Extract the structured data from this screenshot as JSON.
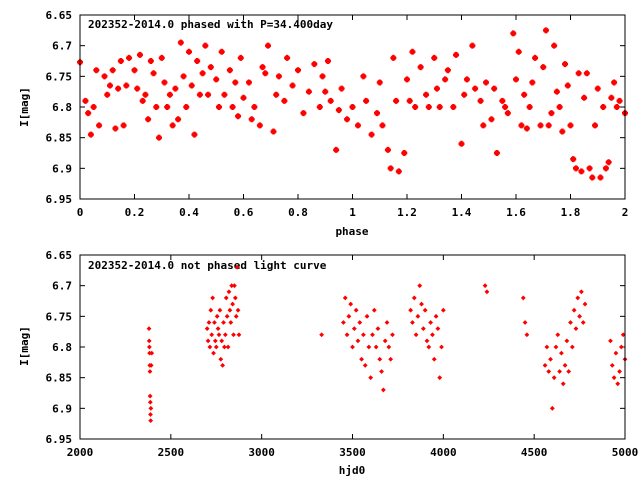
{
  "chart_data": [
    {
      "type": "scatter",
      "title": "202352-2014.0 phased with P=34.400day",
      "xlabel": "phase",
      "ylabel": "I[mag]",
      "xlim": [
        0,
        2
      ],
      "ylim": [
        6.95,
        6.65
      ],
      "y_inverted": true,
      "xticks": [
        "0",
        "0.2",
        "0.4",
        "0.6",
        "0.8",
        "1",
        "1.2",
        "1.4",
        "1.6",
        "1.8",
        "2"
      ],
      "yticks": [
        "6.65",
        "6.7",
        "6.75",
        "6.8",
        "6.85",
        "6.9",
        "6.95"
      ],
      "grid": false,
      "marker_color": "#ff0000",
      "points": [
        [
          0.0,
          6.727
        ],
        [
          0.02,
          6.79
        ],
        [
          0.03,
          6.81
        ],
        [
          0.04,
          6.845
        ],
        [
          0.05,
          6.8
        ],
        [
          0.06,
          6.74
        ],
        [
          0.07,
          6.83
        ],
        [
          0.09,
          6.75
        ],
        [
          0.1,
          6.78
        ],
        [
          0.11,
          6.765
        ],
        [
          0.12,
          6.74
        ],
        [
          0.13,
          6.835
        ],
        [
          0.14,
          6.77
        ],
        [
          0.15,
          6.725
        ],
        [
          0.16,
          6.83
        ],
        [
          0.17,
          6.765
        ],
        [
          0.18,
          6.72
        ],
        [
          0.2,
          6.74
        ],
        [
          0.21,
          6.77
        ],
        [
          0.22,
          6.715
        ],
        [
          0.23,
          6.79
        ],
        [
          0.24,
          6.78
        ],
        [
          0.25,
          6.82
        ],
        [
          0.26,
          6.725
        ],
        [
          0.27,
          6.745
        ],
        [
          0.28,
          6.8
        ],
        [
          0.29,
          6.85
        ],
        [
          0.3,
          6.72
        ],
        [
          0.31,
          6.76
        ],
        [
          0.32,
          6.8
        ],
        [
          0.33,
          6.78
        ],
        [
          0.34,
          6.83
        ],
        [
          0.35,
          6.77
        ],
        [
          0.36,
          6.82
        ],
        [
          0.37,
          6.695
        ],
        [
          0.38,
          6.75
        ],
        [
          0.39,
          6.8
        ],
        [
          0.4,
          6.71
        ],
        [
          0.41,
          6.765
        ],
        [
          0.42,
          6.845
        ],
        [
          0.43,
          6.725
        ],
        [
          0.44,
          6.78
        ],
        [
          0.45,
          6.745
        ],
        [
          0.46,
          6.7
        ],
        [
          0.47,
          6.78
        ],
        [
          0.48,
          6.735
        ],
        [
          0.5,
          6.755
        ],
        [
          0.51,
          6.8
        ],
        [
          0.52,
          6.71
        ],
        [
          0.53,
          6.78
        ],
        [
          0.55,
          6.74
        ],
        [
          0.56,
          6.8
        ],
        [
          0.57,
          6.76
        ],
        [
          0.58,
          6.815
        ],
        [
          0.59,
          6.72
        ],
        [
          0.6,
          6.785
        ],
        [
          0.62,
          6.76
        ],
        [
          0.63,
          6.82
        ],
        [
          0.64,
          6.8
        ],
        [
          0.66,
          6.83
        ],
        [
          0.67,
          6.735
        ],
        [
          0.68,
          6.745
        ],
        [
          0.69,
          6.7
        ],
        [
          0.71,
          6.84
        ],
        [
          0.72,
          6.78
        ],
        [
          0.73,
          6.75
        ],
        [
          0.75,
          6.79
        ],
        [
          0.76,
          6.72
        ],
        [
          0.78,
          6.765
        ],
        [
          0.8,
          6.74
        ],
        [
          0.82,
          6.81
        ],
        [
          0.84,
          6.775
        ],
        [
          0.86,
          6.73
        ],
        [
          0.88,
          6.8
        ],
        [
          0.89,
          6.75
        ],
        [
          0.9,
          6.775
        ],
        [
          0.91,
          6.725
        ],
        [
          0.92,
          6.79
        ],
        [
          0.94,
          6.87
        ],
        [
          0.95,
          6.805
        ],
        [
          0.96,
          6.77
        ],
        [
          0.98,
          6.82
        ],
        [
          1.0,
          6.8
        ],
        [
          1.02,
          6.83
        ],
        [
          1.04,
          6.75
        ],
        [
          1.05,
          6.79
        ],
        [
          1.07,
          6.845
        ],
        [
          1.09,
          6.81
        ],
        [
          1.1,
          6.76
        ],
        [
          1.11,
          6.83
        ],
        [
          1.13,
          6.87
        ],
        [
          1.14,
          6.9
        ],
        [
          1.15,
          6.72
        ],
        [
          1.16,
          6.79
        ],
        [
          1.17,
          6.905
        ],
        [
          1.19,
          6.875
        ],
        [
          1.2,
          6.755
        ],
        [
          1.21,
          6.79
        ],
        [
          1.22,
          6.71
        ],
        [
          1.23,
          6.8
        ],
        [
          1.25,
          6.735
        ],
        [
          1.27,
          6.78
        ],
        [
          1.28,
          6.8
        ],
        [
          1.3,
          6.72
        ],
        [
          1.31,
          6.77
        ],
        [
          1.32,
          6.8
        ],
        [
          1.34,
          6.755
        ],
        [
          1.35,
          6.74
        ],
        [
          1.37,
          6.8
        ],
        [
          1.38,
          6.715
        ],
        [
          1.4,
          6.86
        ],
        [
          1.41,
          6.78
        ],
        [
          1.42,
          6.755
        ],
        [
          1.44,
          6.7
        ],
        [
          1.45,
          6.77
        ],
        [
          1.47,
          6.79
        ],
        [
          1.48,
          6.83
        ],
        [
          1.49,
          6.76
        ],
        [
          1.51,
          6.82
        ],
        [
          1.52,
          6.77
        ],
        [
          1.53,
          6.875
        ],
        [
          1.55,
          6.79
        ],
        [
          1.56,
          6.8
        ],
        [
          1.57,
          6.81
        ],
        [
          1.59,
          6.68
        ],
        [
          1.6,
          6.755
        ],
        [
          1.61,
          6.71
        ],
        [
          1.62,
          6.83
        ],
        [
          1.63,
          6.78
        ],
        [
          1.64,
          6.835
        ],
        [
          1.65,
          6.8
        ],
        [
          1.66,
          6.76
        ],
        [
          1.67,
          6.72
        ],
        [
          1.69,
          6.83
        ],
        [
          1.7,
          6.735
        ],
        [
          1.71,
          6.675
        ],
        [
          1.72,
          6.83
        ],
        [
          1.73,
          6.81
        ],
        [
          1.74,
          6.7
        ],
        [
          1.75,
          6.775
        ],
        [
          1.76,
          6.8
        ],
        [
          1.77,
          6.84
        ],
        [
          1.78,
          6.73
        ],
        [
          1.79,
          6.765
        ],
        [
          1.8,
          6.83
        ],
        [
          1.81,
          6.885
        ],
        [
          1.82,
          6.9
        ],
        [
          1.83,
          6.745
        ],
        [
          1.84,
          6.905
        ],
        [
          1.85,
          6.785
        ],
        [
          1.86,
          6.745
        ],
        [
          1.87,
          6.9
        ],
        [
          1.88,
          6.915
        ],
        [
          1.89,
          6.83
        ],
        [
          1.9,
          6.77
        ],
        [
          1.91,
          6.915
        ],
        [
          1.92,
          6.8
        ],
        [
          1.93,
          6.9
        ],
        [
          1.94,
          6.89
        ],
        [
          1.95,
          6.785
        ],
        [
          1.96,
          6.76
        ],
        [
          1.97,
          6.8
        ],
        [
          1.98,
          6.79
        ],
        [
          2.0,
          6.81
        ]
      ]
    },
    {
      "type": "scatter",
      "title": "202352-2014.0 not phased light curve",
      "xlabel": "hjd0",
      "ylabel": "I[mag]",
      "xlim": [
        2000,
        5000
      ],
      "ylim": [
        6.95,
        6.65
      ],
      "y_inverted": true,
      "xticks": [
        "2000",
        "2500",
        "3000",
        "3500",
        "4000",
        "4500",
        "5000"
      ],
      "yticks": [
        "6.65",
        "6.7",
        "6.75",
        "6.8",
        "6.85",
        "6.9",
        "6.95"
      ],
      "grid": false,
      "marker_color": "#ff0000",
      "points": [
        [
          2380,
          6.77
        ],
        [
          2381,
          6.79
        ],
        [
          2382,
          6.8
        ],
        [
          2383,
          6.81
        ],
        [
          2384,
          6.83
        ],
        [
          2385,
          6.84
        ],
        [
          2386,
          6.88
        ],
        [
          2387,
          6.89
        ],
        [
          2388,
          6.91
        ],
        [
          2389,
          6.92
        ],
        [
          2390,
          6.9
        ],
        [
          2392,
          6.83
        ],
        [
          2395,
          6.81
        ],
        [
          2700,
          6.77
        ],
        [
          2705,
          6.79
        ],
        [
          2710,
          6.76
        ],
        [
          2715,
          6.8
        ],
        [
          2720,
          6.74
        ],
        [
          2725,
          6.78
        ],
        [
          2730,
          6.72
        ],
        [
          2735,
          6.81
        ],
        [
          2740,
          6.76
        ],
        [
          2745,
          6.79
        ],
        [
          2750,
          6.8
        ],
        [
          2755,
          6.75
        ],
        [
          2760,
          6.77
        ],
        [
          2765,
          6.78
        ],
        [
          2770,
          6.74
        ],
        [
          2775,
          6.82
        ],
        [
          2780,
          6.79
        ],
        [
          2785,
          6.83
        ],
        [
          2790,
          6.76
        ],
        [
          2795,
          6.8
        ],
        [
          2800,
          6.78
        ],
        [
          2805,
          6.72
        ],
        [
          2810,
          6.75
        ],
        [
          2815,
          6.8
        ],
        [
          2820,
          6.71
        ],
        [
          2825,
          6.74
        ],
        [
          2830,
          6.76
        ],
        [
          2835,
          6.7
        ],
        [
          2840,
          6.73
        ],
        [
          2845,
          6.78
        ],
        [
          2850,
          6.7
        ],
        [
          2855,
          6.72
        ],
        [
          2860,
          6.75
        ],
        [
          2865,
          6.67
        ],
        [
          2870,
          6.74
        ],
        [
          2875,
          6.78
        ],
        [
          3330,
          6.78
        ],
        [
          3450,
          6.76
        ],
        [
          3460,
          6.72
        ],
        [
          3470,
          6.78
        ],
        [
          3480,
          6.75
        ],
        [
          3490,
          6.73
        ],
        [
          3500,
          6.8
        ],
        [
          3510,
          6.77
        ],
        [
          3520,
          6.74
        ],
        [
          3530,
          6.79
        ],
        [
          3540,
          6.76
        ],
        [
          3550,
          6.82
        ],
        [
          3560,
          6.78
        ],
        [
          3570,
          6.83
        ],
        [
          3580,
          6.75
        ],
        [
          3590,
          6.8
        ],
        [
          3600,
          6.85
        ],
        [
          3610,
          6.78
        ],
        [
          3620,
          6.74
        ],
        [
          3630,
          6.8
        ],
        [
          3640,
          6.77
        ],
        [
          3650,
          6.82
        ],
        [
          3660,
          6.84
        ],
        [
          3670,
          6.87
        ],
        [
          3680,
          6.79
        ],
        [
          3690,
          6.76
        ],
        [
          3700,
          6.8
        ],
        [
          3710,
          6.82
        ],
        [
          3720,
          6.78
        ],
        [
          3820,
          6.74
        ],
        [
          3830,
          6.76
        ],
        [
          3840,
          6.72
        ],
        [
          3850,
          6.78
        ],
        [
          3860,
          6.75
        ],
        [
          3870,
          6.7
        ],
        [
          3880,
          6.73
        ],
        [
          3890,
          6.77
        ],
        [
          3900,
          6.74
        ],
        [
          3910,
          6.79
        ],
        [
          3920,
          6.8
        ],
        [
          3930,
          6.76
        ],
        [
          3940,
          6.78
        ],
        [
          3950,
          6.82
        ],
        [
          3960,
          6.75
        ],
        [
          3970,
          6.77
        ],
        [
          3980,
          6.85
        ],
        [
          3990,
          6.8
        ],
        [
          4000,
          6.74
        ],
        [
          4230,
          6.7
        ],
        [
          4240,
          6.71
        ],
        [
          4440,
          6.72
        ],
        [
          4450,
          6.76
        ],
        [
          4460,
          6.78
        ],
        [
          4560,
          6.83
        ],
        [
          4570,
          6.8
        ],
        [
          4580,
          6.84
        ],
        [
          4590,
          6.82
        ],
        [
          4600,
          6.9
        ],
        [
          4610,
          6.85
        ],
        [
          4620,
          6.8
        ],
        [
          4630,
          6.78
        ],
        [
          4640,
          6.84
        ],
        [
          4650,
          6.81
        ],
        [
          4660,
          6.86
        ],
        [
          4670,
          6.83
        ],
        [
          4680,
          6.79
        ],
        [
          4690,
          6.84
        ],
        [
          4700,
          6.76
        ],
        [
          4710,
          6.8
        ],
        [
          4720,
          6.74
        ],
        [
          4730,
          6.77
        ],
        [
          4740,
          6.72
        ],
        [
          4750,
          6.75
        ],
        [
          4760,
          6.71
        ],
        [
          4770,
          6.76
        ],
        [
          4780,
          6.73
        ],
        [
          4920,
          6.79
        ],
        [
          4930,
          6.83
        ],
        [
          4940,
          6.85
        ],
        [
          4950,
          6.81
        ],
        [
          4960,
          6.86
        ],
        [
          4970,
          6.84
        ],
        [
          4980,
          6.8
        ],
        [
          4990,
          6.78
        ],
        [
          5000,
          6.82
        ]
      ]
    }
  ]
}
